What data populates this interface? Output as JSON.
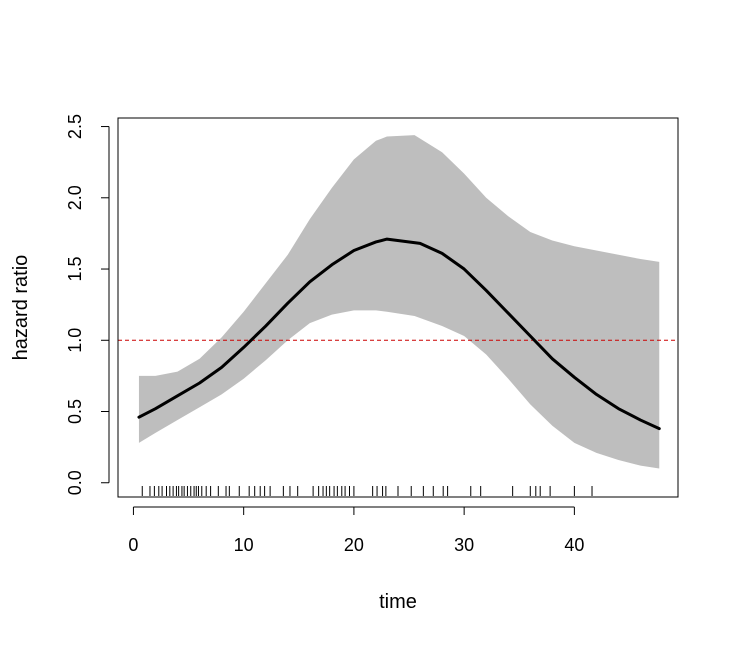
{
  "chart_data": {
    "type": "line",
    "title": "",
    "xlabel": "time",
    "ylabel": "hazard ratio",
    "xlim": [
      -1.4,
      49.4
    ],
    "ylim": [
      -0.1,
      2.56
    ],
    "xticks": [
      0,
      10,
      20,
      30,
      40
    ],
    "yticks": [
      0.0,
      0.5,
      1.0,
      1.5,
      2.0,
      2.5
    ],
    "xtick_labels": [
      "0",
      "10",
      "20",
      "30",
      "40"
    ],
    "ytick_labels": [
      "0.0",
      "0.5",
      "1.0",
      "1.5",
      "2.0",
      "2.5"
    ],
    "grid": false,
    "legend": "none",
    "reference_line": {
      "y": 1.0,
      "style": "dashed",
      "color": "#cc0000"
    },
    "series": [
      {
        "role": "estimate",
        "color": "#000000",
        "x": [
          0.5,
          2,
          4,
          6,
          8,
          10,
          12,
          14,
          16,
          18,
          20,
          22,
          23,
          26,
          28,
          30,
          32,
          34,
          36,
          38,
          40,
          42,
          44,
          46,
          47.7
        ],
        "y": [
          0.46,
          0.52,
          0.61,
          0.7,
          0.81,
          0.95,
          1.1,
          1.26,
          1.41,
          1.53,
          1.63,
          1.69,
          1.71,
          1.68,
          1.61,
          1.5,
          1.35,
          1.19,
          1.03,
          0.87,
          0.74,
          0.62,
          0.52,
          0.44,
          0.38
        ]
      }
    ],
    "confidence_band": {
      "color": "#bebebe",
      "x": [
        0.5,
        2,
        4,
        6,
        8,
        10,
        12,
        14,
        16,
        18,
        20,
        22,
        23,
        25.5,
        28,
        30,
        32,
        34,
        36,
        38,
        40,
        42,
        44,
        46,
        47.7
      ],
      "upper": [
        0.75,
        0.75,
        0.78,
        0.87,
        1.02,
        1.2,
        1.4,
        1.6,
        1.85,
        2.07,
        2.27,
        2.4,
        2.43,
        2.44,
        2.32,
        2.17,
        2.0,
        1.87,
        1.76,
        1.7,
        1.66,
        1.63,
        1.6,
        1.57,
        1.55
      ],
      "lower": [
        0.28,
        0.35,
        0.44,
        0.53,
        0.62,
        0.73,
        0.86,
        1.0,
        1.12,
        1.18,
        1.21,
        1.21,
        1.2,
        1.17,
        1.1,
        1.03,
        0.9,
        0.73,
        0.55,
        0.4,
        0.28,
        0.21,
        0.16,
        0.12,
        0.1
      ]
    },
    "rug": [
      0.8,
      1.5,
      1.9,
      2.3,
      2.6,
      3.0,
      3.3,
      3.6,
      3.9,
      4.1,
      4.4,
      4.6,
      4.9,
      5.2,
      5.5,
      5.7,
      5.9,
      6.2,
      6.6,
      7.0,
      7.7,
      8.4,
      8.7,
      9.6,
      10.5,
      11.0,
      11.5,
      11.9,
      12.4,
      13.6,
      14.2,
      14.9,
      16.3,
      16.8,
      17.2,
      17.5,
      17.8,
      18.2,
      18.5,
      18.9,
      19.2,
      19.6,
      20.0,
      21.7,
      22.1,
      22.6,
      22.9,
      24.0,
      25.2,
      26.3,
      27.2,
      28.1,
      28.5,
      30.6,
      31.5,
      34.4,
      36.0,
      36.5,
      36.9,
      37.8,
      40.0,
      41.6
    ]
  }
}
